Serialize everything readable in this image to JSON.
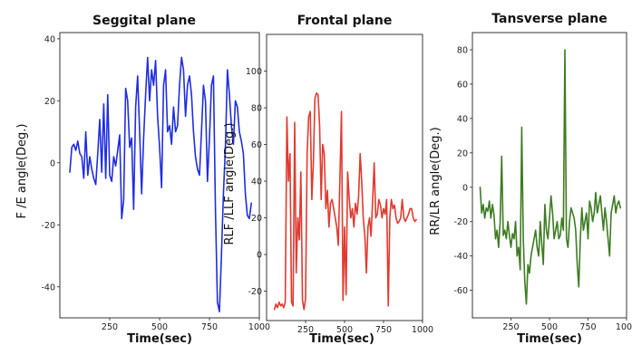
{
  "chart_data": [
    {
      "type": "line",
      "title": "Seggital plane",
      "xlabel": "Time(sec)",
      "ylabel": "F /E angle(Deg.)",
      "xlim": [
        0,
        1000
      ],
      "ylim": [
        -50,
        42
      ],
      "xticks": [
        250,
        500,
        750,
        1000
      ],
      "yticks": [
        -40,
        -20,
        0,
        20,
        40
      ],
      "color": "#1f2de0",
      "series": [
        {
          "x": [
            50,
            60,
            70,
            80,
            90,
            100,
            110,
            120,
            130,
            140,
            150,
            160,
            170,
            180,
            190,
            200,
            210,
            220,
            230,
            240,
            250,
            260,
            270,
            280,
            290,
            300,
            310,
            320,
            330,
            340,
            350,
            360,
            370,
            380,
            390,
            400,
            410,
            420,
            430,
            440,
            450,
            460,
            470,
            480,
            490,
            500,
            510,
            520,
            530,
            540,
            550,
            560,
            570,
            580,
            590,
            600,
            610,
            620,
            630,
            640,
            650,
            660,
            670,
            680,
            690,
            700,
            710,
            720,
            730,
            740,
            750,
            760,
            770,
            780,
            790,
            800,
            810,
            820,
            830,
            840,
            850,
            860,
            870,
            880,
            890,
            900,
            910,
            920,
            930,
            940,
            950,
            960
          ],
          "y": [
            -3,
            5,
            6,
            4,
            7,
            3,
            2,
            -5,
            10,
            -4,
            2,
            -2,
            -5,
            -7,
            3,
            14,
            -3,
            19,
            -5,
            22,
            -4,
            -6,
            2,
            -1,
            4,
            9,
            -18,
            -12,
            24,
            20,
            5,
            8,
            -15,
            18,
            28,
            10,
            -10,
            8,
            22,
            34,
            20,
            30,
            25,
            33,
            15,
            5,
            -8,
            25,
            30,
            10,
            12,
            6,
            18,
            10,
            12,
            25,
            34,
            30,
            15,
            25,
            28,
            22,
            10,
            2,
            -2,
            -4,
            10,
            25,
            20,
            -6,
            8,
            25,
            28,
            -15,
            -45,
            -48,
            -30,
            -10,
            5,
            30,
            22,
            12,
            6,
            20,
            18,
            10,
            7,
            3,
            -10,
            -17,
            -18,
            -13
          ]
        }
      ]
    },
    {
      "type": "line",
      "title": "Frontal plane",
      "xlabel": "Time(sec)",
      "ylabel": "RLF /LLF angle(Deg.)",
      "xlim": [
        0,
        1000
      ],
      "ylim": [
        -36,
        120
      ],
      "xticks": [
        250,
        500,
        750,
        1000
      ],
      "yticks": [
        -20,
        0,
        20,
        40,
        60,
        80,
        100
      ],
      "color": "#e03a2f",
      "series": [
        {
          "x": [
            50,
            60,
            70,
            80,
            90,
            100,
            110,
            120,
            130,
            140,
            150,
            160,
            170,
            180,
            190,
            200,
            210,
            220,
            230,
            240,
            250,
            260,
            270,
            280,
            290,
            300,
            310,
            320,
            330,
            340,
            350,
            360,
            370,
            380,
            390,
            400,
            410,
            420,
            430,
            440,
            450,
            460,
            470,
            480,
            490,
            500,
            510,
            520,
            530,
            540,
            550,
            560,
            570,
            580,
            590,
            600,
            610,
            620,
            630,
            640,
            650,
            660,
            670,
            680,
            690,
            700,
            710,
            720,
            730,
            740,
            750,
            760,
            770,
            780,
            790,
            800,
            810,
            820,
            830,
            840,
            850,
            860,
            870,
            880,
            890,
            900,
            910,
            920,
            930,
            940,
            950,
            960
          ],
          "y": [
            -30,
            -27,
            -29,
            -26,
            -28,
            -27,
            -29,
            -26,
            75,
            40,
            55,
            -26,
            -28,
            72,
            -10,
            20,
            8,
            45,
            -25,
            -30,
            -24,
            55,
            75,
            78,
            30,
            50,
            85,
            88,
            87,
            70,
            30,
            60,
            55,
            25,
            35,
            15,
            28,
            30,
            25,
            20,
            15,
            5,
            40,
            78,
            -25,
            15,
            -22,
            45,
            30,
            20,
            25,
            15,
            28,
            22,
            32,
            55,
            40,
            20,
            10,
            -10,
            15,
            20,
            10,
            30,
            50,
            20,
            22,
            30,
            27,
            20,
            25,
            22,
            30,
            -28,
            20,
            30,
            25,
            27,
            20,
            17,
            18,
            20,
            30,
            20,
            18,
            20,
            22,
            25,
            25,
            20,
            18,
            19
          ]
        }
      ]
    },
    {
      "type": "line",
      "title": "Tansverse plane",
      "xlabel": "Time(sec)",
      "ylabel": "RR/LR angle(Deg.)",
      "xlim": [
        0,
        1000
      ],
      "ylim": [
        -76,
        90
      ],
      "xticks": [
        250,
        500,
        750,
        1000
      ],
      "yticks": [
        -60,
        -40,
        -20,
        0,
        20,
        40,
        60,
        80
      ],
      "color": "#3d7c22",
      "series": [
        {
          "x": [
            50,
            60,
            70,
            80,
            90,
            100,
            110,
            120,
            130,
            140,
            150,
            160,
            170,
            180,
            190,
            200,
            210,
            220,
            230,
            240,
            250,
            260,
            270,
            280,
            290,
            300,
            310,
            320,
            330,
            340,
            350,
            360,
            370,
            380,
            390,
            400,
            410,
            420,
            430,
            440,
            450,
            460,
            470,
            480,
            490,
            500,
            510,
            520,
            530,
            540,
            550,
            560,
            570,
            580,
            590,
            600,
            610,
            620,
            630,
            640,
            650,
            660,
            670,
            680,
            690,
            700,
            710,
            720,
            730,
            740,
            750,
            760,
            770,
            780,
            790,
            800,
            810,
            820,
            830,
            840,
            850,
            860,
            870,
            880,
            890,
            900,
            910,
            920,
            930,
            940,
            950,
            960
          ],
          "y": [
            0,
            -15,
            -10,
            -18,
            -12,
            -14,
            -8,
            -18,
            -10,
            -16,
            -30,
            -25,
            -35,
            -20,
            18,
            -28,
            -25,
            -30,
            -20,
            -28,
            -35,
            -27,
            -30,
            -20,
            -40,
            -35,
            -48,
            35,
            -30,
            -55,
            -68,
            -45,
            -50,
            -40,
            -35,
            -30,
            -25,
            -35,
            -40,
            -20,
            -33,
            -45,
            -10,
            -25,
            -30,
            -18,
            -5,
            -15,
            -30,
            -25,
            -20,
            -30,
            -28,
            -18,
            -25,
            80,
            -30,
            -35,
            -20,
            -12,
            -15,
            -18,
            -25,
            -45,
            -58,
            -30,
            -12,
            -25,
            -20,
            -15,
            -30,
            -8,
            -12,
            -20,
            -15,
            -3,
            -15,
            -10,
            -5,
            -15,
            -25,
            -12,
            -20,
            -30,
            -40,
            -15,
            -10,
            -5,
            -15,
            -10,
            -8,
            -12
          ]
        }
      ]
    }
  ]
}
